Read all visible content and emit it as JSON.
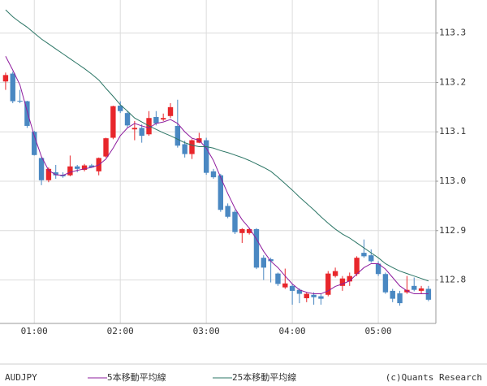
{
  "chart_data": {
    "type": "candlestick",
    "title": "AUDJPY",
    "credit": "(c)Quants Research",
    "categories": [
      null,
      null,
      null,
      null,
      "01:00",
      null,
      null,
      null,
      null,
      null,
      null,
      null,
      null,
      null,
      null,
      null,
      "02:00",
      null,
      null,
      null,
      null,
      null,
      null,
      null,
      null,
      null,
      null,
      null,
      "03:00",
      null,
      null,
      null,
      null,
      null,
      null,
      null,
      null,
      null,
      null,
      null,
      "04:00",
      null,
      null,
      null,
      null,
      null,
      null,
      null,
      null,
      null,
      null,
      null,
      "05:00",
      null,
      null,
      null,
      null,
      null,
      null,
      null
    ],
    "open": [
      113.202,
      113.218,
      113.163,
      113.162,
      113.1,
      113.047,
      113.002,
      113.018,
      113.013,
      113.012,
      113.03,
      113.023,
      113.032,
      113.02,
      113.05,
      113.088,
      113.153,
      113.138,
      113.105,
      113.108,
      113.095,
      113.13,
      113.125,
      113.132,
      113.112,
      113.075,
      113.055,
      113.078,
      113.083,
      113.02,
      113.012,
      112.95,
      112.938,
      112.895,
      112.895,
      112.903,
      112.845,
      112.842,
      112.813,
      112.785,
      112.788,
      112.78,
      112.763,
      112.77,
      112.767,
      112.77,
      112.808,
      112.788,
      112.797,
      112.812,
      112.855,
      112.85,
      112.833,
      112.812,
      112.778,
      112.773,
      112.775,
      112.788,
      112.778,
      112.782
    ],
    "high": [
      113.22,
      113.222,
      113.185,
      113.163,
      113.102,
      113.048,
      113.028,
      113.033,
      113.018,
      113.052,
      113.033,
      113.035,
      113.035,
      113.048,
      113.088,
      113.153,
      113.162,
      113.142,
      113.122,
      113.115,
      113.142,
      113.142,
      113.137,
      113.158,
      113.165,
      113.082,
      113.085,
      113.098,
      113.088,
      113.025,
      113.015,
      112.955,
      112.942,
      112.905,
      112.905,
      112.905,
      112.85,
      112.845,
      112.815,
      112.823,
      112.792,
      112.783,
      112.775,
      112.775,
      112.772,
      112.818,
      112.825,
      112.808,
      112.815,
      112.848,
      112.882,
      112.862,
      112.838,
      112.815,
      112.782,
      112.778,
      112.808,
      112.805,
      112.788,
      112.788
    ],
    "low": [
      113.185,
      113.158,
      113.158,
      113.108,
      113.052,
      112.992,
      112.998,
      113.005,
      113.007,
      113.01,
      113.018,
      113.02,
      113.027,
      113.012,
      113.048,
      113.085,
      113.138,
      113.108,
      113.083,
      113.078,
      113.092,
      113.113,
      113.122,
      113.128,
      113.068,
      113.048,
      113.045,
      113.077,
      113.013,
      113.005,
      112.938,
      112.925,
      112.893,
      112.875,
      112.892,
      112.822,
      112.8,
      112.795,
      112.788,
      112.782,
      112.75,
      112.753,
      112.755,
      112.75,
      112.75,
      112.767,
      112.805,
      112.778,
      112.788,
      112.808,
      112.845,
      112.835,
      112.808,
      112.772,
      112.755,
      112.748,
      112.772,
      112.777,
      112.772,
      112.757
    ],
    "close": [
      113.215,
      113.162,
      113.162,
      113.112,
      113.053,
      113.002,
      113.025,
      113.012,
      113.01,
      113.03,
      113.025,
      113.032,
      113.028,
      113.047,
      113.087,
      113.152,
      113.142,
      113.113,
      113.108,
      113.092,
      113.128,
      113.117,
      113.128,
      113.15,
      113.072,
      113.055,
      113.083,
      113.087,
      113.017,
      113.008,
      112.942,
      112.928,
      112.897,
      112.903,
      112.903,
      112.825,
      112.825,
      112.838,
      112.792,
      112.793,
      112.778,
      112.772,
      112.772,
      112.765,
      112.762,
      112.813,
      112.818,
      112.803,
      112.808,
      112.845,
      112.848,
      112.838,
      112.812,
      112.775,
      112.762,
      112.753,
      112.78,
      112.78,
      112.783,
      112.76
    ],
    "up_color": "#e8262b",
    "down_color": "#4a88c2",
    "series": [
      {
        "name": "5本移動平均線",
        "color": "#8e1c9e",
        "values": [
          113.253,
          113.225,
          113.195,
          113.142,
          113.092,
          113.05,
          113.022,
          113.013,
          113.012,
          113.018,
          113.022,
          113.025,
          113.028,
          113.033,
          113.045,
          113.067,
          113.092,
          113.108,
          113.117,
          113.112,
          113.108,
          113.117,
          113.12,
          113.125,
          113.117,
          113.1,
          113.087,
          113.083,
          113.067,
          113.042,
          113.008,
          112.975,
          112.945,
          112.922,
          112.905,
          112.883,
          112.858,
          112.838,
          112.825,
          112.808,
          112.792,
          112.78,
          112.775,
          112.772,
          112.772,
          112.778,
          112.787,
          112.792,
          112.798,
          112.812,
          112.825,
          112.833,
          112.833,
          112.822,
          112.805,
          112.788,
          112.778,
          112.772,
          112.772,
          112.772
        ]
      },
      {
        "name": "25本移動平均線",
        "color": "#2b7565",
        "values": [
          113.347,
          113.333,
          113.322,
          113.312,
          113.3,
          113.288,
          113.278,
          113.268,
          113.258,
          113.248,
          113.238,
          113.228,
          113.217,
          113.205,
          113.188,
          113.172,
          113.155,
          113.142,
          113.128,
          113.12,
          113.112,
          113.105,
          113.098,
          113.092,
          113.085,
          113.078,
          113.073,
          113.07,
          113.07,
          113.067,
          113.062,
          113.058,
          113.053,
          113.048,
          113.042,
          113.035,
          113.028,
          113.02,
          113.008,
          112.995,
          112.982,
          112.968,
          112.955,
          112.942,
          112.928,
          112.915,
          112.903,
          112.893,
          112.885,
          112.875,
          112.865,
          112.855,
          112.845,
          112.833,
          112.825,
          112.818,
          112.813,
          112.808,
          112.803,
          112.798
        ]
      }
    ],
    "ylim": [
      112.712,
      113.367
    ],
    "yticks": [
      112.8,
      112.9,
      {
        "value": 113,
        "label": "113.0"
      },
      113.1,
      113.2,
      113.3
    ],
    "grid": true
  }
}
